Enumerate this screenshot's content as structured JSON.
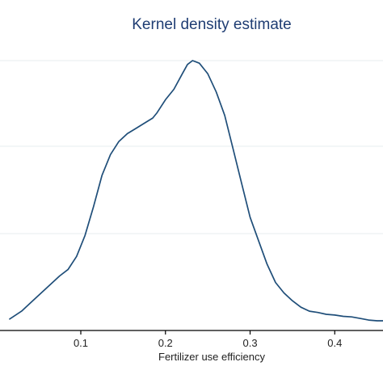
{
  "chart_data": {
    "type": "line",
    "title": "Kernel density estimate",
    "xlabel": "Fertilizer use efficiency",
    "ylabel": "",
    "xlim": [
      0.016,
      0.457
    ],
    "ylim": [
      0,
      1.0
    ],
    "grid": true,
    "x_ticks": [
      {
        "value": 0.1,
        "label": "0.1"
      },
      {
        "value": 0.2,
        "label": "0.2"
      },
      {
        "value": 0.3,
        "label": "0.3"
      },
      {
        "value": 0.4,
        "label": "0.4"
      }
    ],
    "y_grid_values": [
      0,
      0.337,
      0.672,
      1.0
    ],
    "series": [
      {
        "color": "#1f4e79",
        "x": [
          0.016,
          0.03,
          0.045,
          0.06,
          0.075,
          0.085,
          0.095,
          0.105,
          0.115,
          0.125,
          0.135,
          0.145,
          0.155,
          0.165,
          0.175,
          0.185,
          0.19,
          0.2,
          0.21,
          0.22,
          0.226,
          0.232,
          0.24,
          0.25,
          0.26,
          0.27,
          0.28,
          0.29,
          0.3,
          0.31,
          0.32,
          0.33,
          0.34,
          0.35,
          0.36,
          0.37,
          0.38,
          0.39,
          0.4,
          0.41,
          0.42,
          0.43,
          0.44,
          0.45,
          0.457
        ],
        "y": [
          0.01,
          0.04,
          0.085,
          0.13,
          0.175,
          0.2,
          0.25,
          0.33,
          0.44,
          0.56,
          0.64,
          0.69,
          0.72,
          0.74,
          0.76,
          0.78,
          0.8,
          0.85,
          0.89,
          0.95,
          0.985,
          1.0,
          0.99,
          0.95,
          0.88,
          0.79,
          0.66,
          0.53,
          0.4,
          0.31,
          0.22,
          0.15,
          0.11,
          0.08,
          0.055,
          0.04,
          0.035,
          0.028,
          0.025,
          0.02,
          0.018,
          0.012,
          0.006,
          0.003,
          0.003
        ]
      }
    ]
  }
}
